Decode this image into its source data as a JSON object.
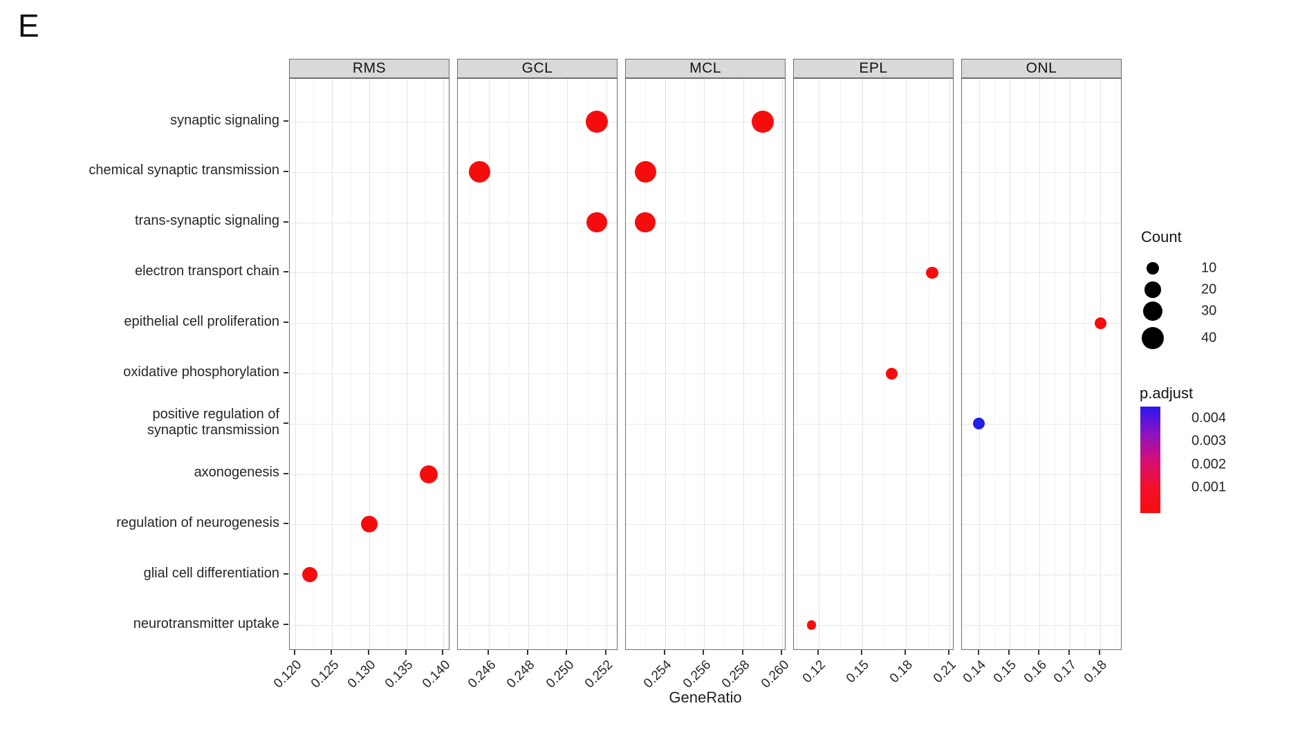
{
  "figure_label": "E",
  "chart_data": {
    "type": "scatter",
    "title": "",
    "xlabel": "GeneRatio",
    "facet_note": "faceted enrichment dot plot; each facet has an independent free x scale",
    "categories": [
      "synaptic signaling",
      "chemical synaptic transmission",
      "trans-synaptic signaling",
      "electron transport chain",
      "epithelial cell proliferation",
      "oxidative phosphorylation",
      "positive regulation of\nsynaptic transmission",
      "axonogenesis",
      "regulation of neurogenesis",
      "glial cell differentiation",
      "neurotransmitter uptake"
    ],
    "facets": [
      {
        "name": "RMS",
        "domain": [
          0.1193,
          0.1409
        ],
        "ticks": [
          {
            "v": 0.12,
            "label": "0.120"
          },
          {
            "v": 0.125,
            "label": "0.125"
          },
          {
            "v": 0.13,
            "label": "0.130"
          },
          {
            "v": 0.135,
            "label": "0.135"
          },
          {
            "v": 0.14,
            "label": "0.140"
          }
        ]
      },
      {
        "name": "GCL",
        "domain": [
          0.2444,
          0.2526
        ],
        "ticks": [
          {
            "v": 0.246,
            "label": "0.246"
          },
          {
            "v": 0.248,
            "label": "0.248"
          },
          {
            "v": 0.25,
            "label": "0.250"
          },
          {
            "v": 0.252,
            "label": "0.252"
          }
        ]
      },
      {
        "name": "MCL",
        "domain": [
          0.252,
          0.2602
        ],
        "ticks": [
          {
            "v": 0.254,
            "label": "0.254"
          },
          {
            "v": 0.256,
            "label": "0.256"
          },
          {
            "v": 0.258,
            "label": "0.258"
          },
          {
            "v": 0.26,
            "label": "0.260"
          }
        ]
      },
      {
        "name": "EPL",
        "domain": [
          0.1029,
          0.2133
        ],
        "ticks": [
          {
            "v": 0.12,
            "label": "0.12"
          },
          {
            "v": 0.15,
            "label": "0.15"
          },
          {
            "v": 0.18,
            "label": "0.18"
          },
          {
            "v": 0.21,
            "label": "0.21"
          }
        ]
      },
      {
        "name": "ONL",
        "domain": [
          0.1343,
          0.1873
        ],
        "ticks": [
          {
            "v": 0.14,
            "label": "0.14"
          },
          {
            "v": 0.15,
            "label": "0.15"
          },
          {
            "v": 0.16,
            "label": "0.16"
          },
          {
            "v": 0.17,
            "label": "0.17"
          },
          {
            "v": 0.18,
            "label": "0.18"
          }
        ]
      }
    ],
    "points": [
      {
        "facet": "GCL",
        "category": "synaptic signaling",
        "gene_ratio": 0.2515,
        "count": 40,
        "p_adjust": 0.001,
        "color": "#f50d0d"
      },
      {
        "facet": "GCL",
        "category": "chemical synaptic transmission",
        "gene_ratio": 0.2455,
        "count": 38,
        "p_adjust": 0.001,
        "color": "#f50d0d"
      },
      {
        "facet": "GCL",
        "category": "trans-synaptic signaling",
        "gene_ratio": 0.2515,
        "count": 34,
        "p_adjust": 0.001,
        "color": "#f50d0d"
      },
      {
        "facet": "MCL",
        "category": "synaptic signaling",
        "gene_ratio": 0.259,
        "count": 42,
        "p_adjust": 0.001,
        "color": "#f50d0d"
      },
      {
        "facet": "MCL",
        "category": "chemical synaptic transmission",
        "gene_ratio": 0.253,
        "count": 38,
        "p_adjust": 0.001,
        "color": "#f50d0d"
      },
      {
        "facet": "MCL",
        "category": "trans-synaptic signaling",
        "gene_ratio": 0.253,
        "count": 34,
        "p_adjust": 0.001,
        "color": "#f50d0d"
      },
      {
        "facet": "RMS",
        "category": "axonogenesis",
        "gene_ratio": 0.138,
        "count": 25,
        "p_adjust": 0.001,
        "color": "#f50d0d"
      },
      {
        "facet": "RMS",
        "category": "regulation of neurogenesis",
        "gene_ratio": 0.13,
        "count": 21,
        "p_adjust": 0.001,
        "color": "#f50d0d"
      },
      {
        "facet": "RMS",
        "category": "glial cell differentiation",
        "gene_ratio": 0.122,
        "count": 17,
        "p_adjust": 0.001,
        "color": "#f50d0d"
      },
      {
        "facet": "EPL",
        "category": "electron transport chain",
        "gene_ratio": 0.198,
        "count": 10,
        "p_adjust": 0.001,
        "color": "#f50d0d"
      },
      {
        "facet": "EPL",
        "category": "oxidative phosphorylation",
        "gene_ratio": 0.17,
        "count": 9,
        "p_adjust": 0.001,
        "color": "#f50d0d"
      },
      {
        "facet": "EPL",
        "category": "neurotransmitter uptake",
        "gene_ratio": 0.115,
        "count": 5,
        "p_adjust": 0.001,
        "color": "#f50d0d"
      },
      {
        "facet": "ONL",
        "category": "epithelial cell proliferation",
        "gene_ratio": 0.18,
        "count": 9,
        "p_adjust": 0.001,
        "color": "#f50d0d"
      },
      {
        "facet": "ONL",
        "category": "positive regulation of\nsynaptic transmission",
        "gene_ratio": 0.14,
        "count": 9,
        "p_adjust": 0.004,
        "color": "#2020e8"
      }
    ],
    "legend_count": {
      "title": "Count",
      "values": [
        {
          "v": 10,
          "label": "10"
        },
        {
          "v": 20,
          "label": "20"
        },
        {
          "v": 30,
          "label": "30"
        },
        {
          "v": 40,
          "label": "40"
        }
      ]
    },
    "legend_padjust": {
      "title": "p.adjust",
      "labels": [
        "0.004",
        "0.003",
        "0.002",
        "0.001"
      ],
      "gradient_stops": [
        "#2b16f2",
        "#8a14c0",
        "#d40e78",
        "#f2102c",
        "#f70d0d"
      ]
    }
  }
}
